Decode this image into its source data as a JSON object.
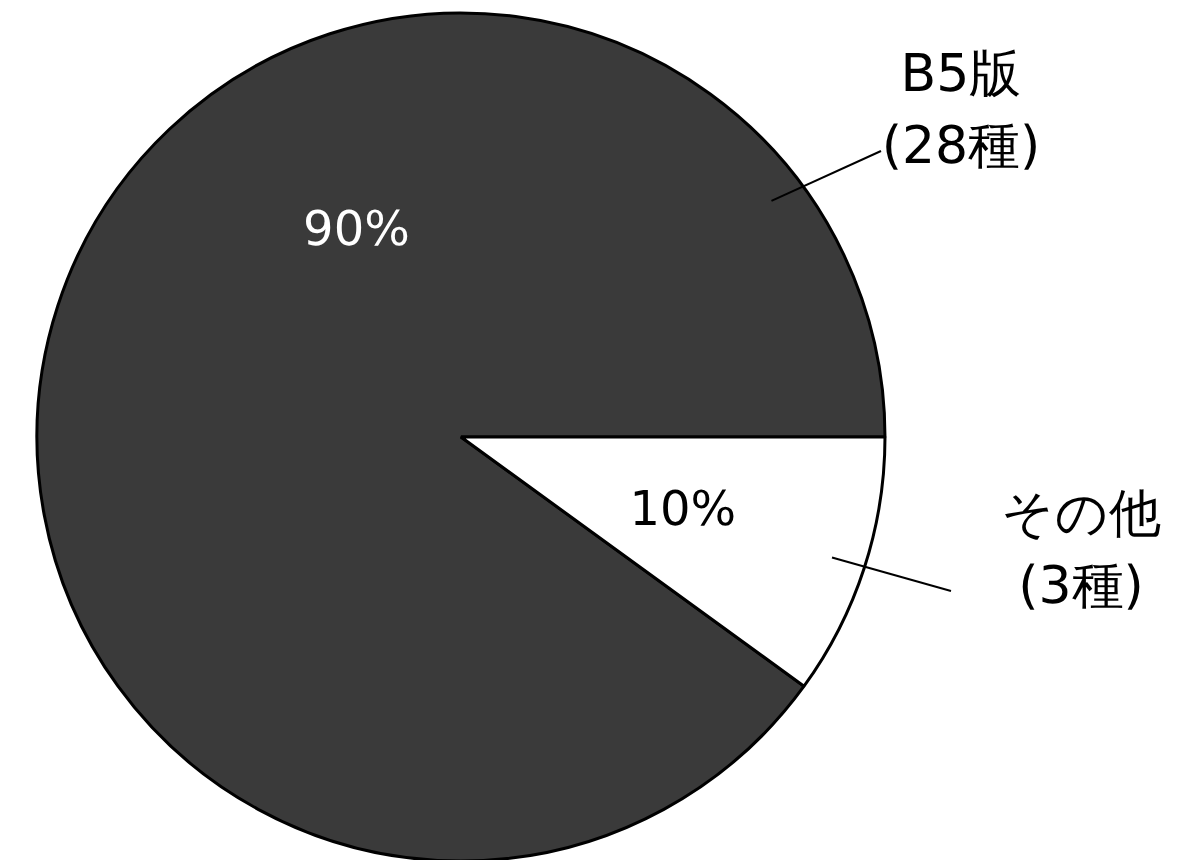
{
  "chart_data": {
    "type": "pie",
    "categories": [
      "B5版\n(28種)",
      "その他\n(3種)"
    ],
    "values": [
      90,
      10
    ],
    "colors": [
      "#3a3a3a",
      "#ffffff"
    ],
    "value_labels": [
      "90%",
      "10%"
    ]
  }
}
